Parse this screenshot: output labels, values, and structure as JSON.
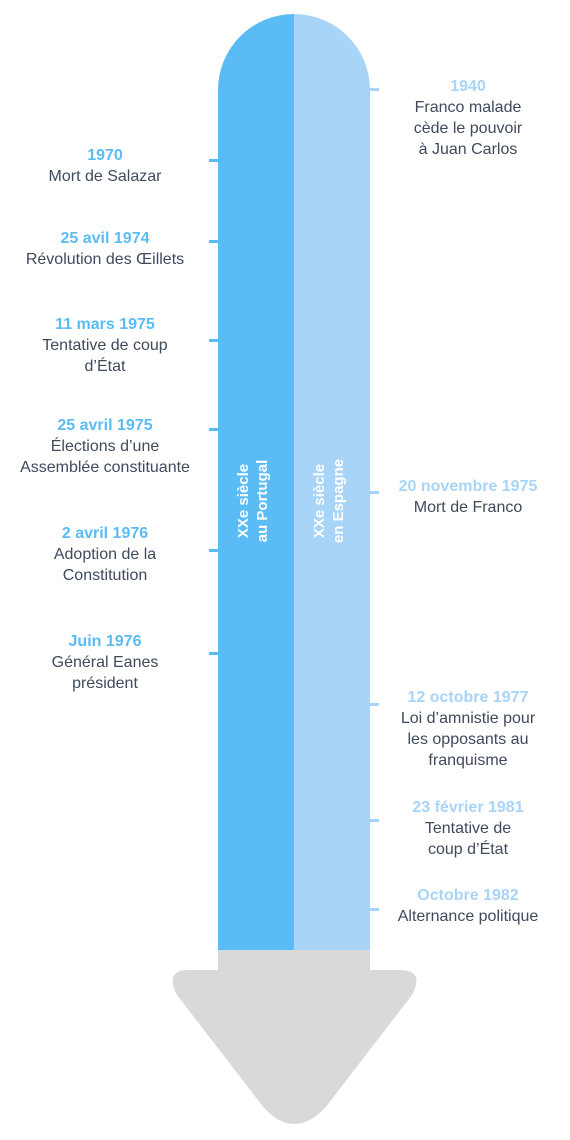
{
  "colors": {
    "portugal_band": "#5bbcf5",
    "spain_band": "#a8d4f7",
    "arrow": "#d9d9d9",
    "text": "#3f4a5c"
  },
  "bands": {
    "portugal": "XXe siècle\nau Portugal",
    "spain": "XXe siècle\nen Espagne"
  },
  "portugal_events": [
    {
      "date": "1970",
      "label": "Mort de Salazar"
    },
    {
      "date": "25 avil 1974",
      "label": "Révolution des Œillets"
    },
    {
      "date": "11 mars 1975",
      "label": "Tentative de coup\nd’État"
    },
    {
      "date": "25 avril 1975",
      "label": "Élections d’une\nAssemblée constituante"
    },
    {
      "date": "2 avril 1976",
      "label": "Adoption de la\nConstitution"
    },
    {
      "date": "Juin 1976",
      "label": "Général Eanes\nprésident"
    }
  ],
  "spain_events": [
    {
      "date": "1940",
      "label": "Franco malade\ncède le pouvoir\nà Juan Carlos"
    },
    {
      "date": "20 novembre 1975",
      "label": "Mort de Franco"
    },
    {
      "date": "12 octobre 1977",
      "label": "Loi d’amnistie pour\nles opposants au\nfranquisme"
    },
    {
      "date": "23 février 1981",
      "label": "Tentative de\ncoup d’État"
    },
    {
      "date": "Octobre 1982",
      "label": "Alternance politique"
    }
  ]
}
